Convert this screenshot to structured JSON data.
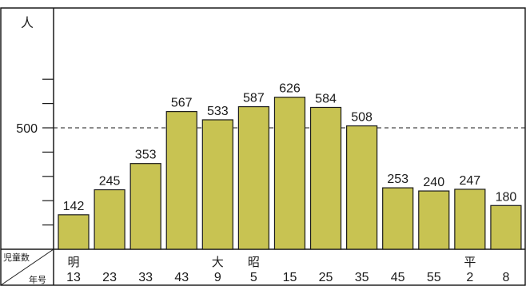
{
  "chart_data": {
    "type": "bar",
    "y_unit_label": "人",
    "y_ticks": [
      500
    ],
    "ylim": [
      0,
      700
    ],
    "reference_line": 500,
    "row_header": {
      "top": "児童数",
      "bottom": "年号"
    },
    "categories": [
      "13",
      "23",
      "33",
      "43",
      "9",
      "5",
      "15",
      "25",
      "35",
      "45",
      "55",
      "2",
      "8"
    ],
    "era_labels": [
      "明",
      "",
      "",
      "",
      "大",
      "昭",
      "",
      "",
      "",
      "",
      "",
      "平",
      ""
    ],
    "values": [
      142,
      245,
      353,
      567,
      533,
      587,
      626,
      584,
      508,
      253,
      240,
      247,
      180
    ],
    "bar_color": "#c8c352",
    "bar_stroke": "#1a1a1a",
    "grid": false
  }
}
